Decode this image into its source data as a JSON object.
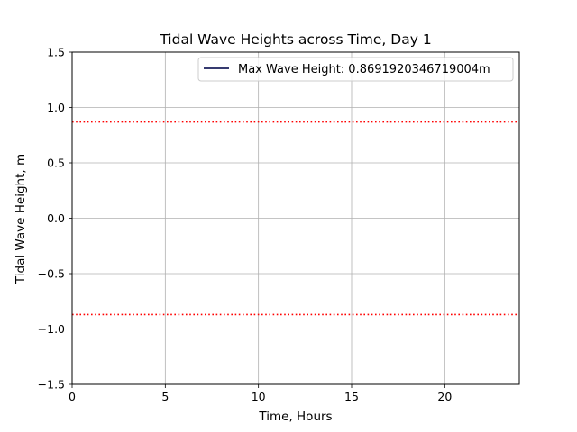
{
  "chart_data": {
    "type": "line",
    "title": "Tidal Wave Heights across Time, Day 1",
    "xlabel": "Time, Hours",
    "ylabel": "Tidal Wave Height, m",
    "xlim": [
      0,
      24
    ],
    "ylim": [
      -1.5,
      1.5
    ],
    "xticks": [
      0,
      5,
      10,
      15,
      20
    ],
    "yticks": [
      -1.5,
      -1.0,
      -0.5,
      0.0,
      0.5,
      1.0,
      1.5
    ],
    "xtick_labels": [
      "0",
      "5",
      "10",
      "15",
      "20"
    ],
    "ytick_labels": [
      "−1.5",
      "−1.0",
      "−0.5",
      "0.0",
      "0.5",
      "1.0",
      "1.5"
    ],
    "grid": true,
    "series": [
      {
        "name": "Max Wave Height: 0.8691920346719004m",
        "color": "#1a1f5c",
        "x": [],
        "y": []
      }
    ],
    "reference_lines": [
      {
        "orientation": "horizontal",
        "y": 0.8691920346719004,
        "style": "dotted",
        "color": "#ff0000"
      },
      {
        "orientation": "horizontal",
        "y": -0.8691920346719004,
        "style": "dotted",
        "color": "#ff0000"
      }
    ],
    "legend": {
      "placement": "upper-right"
    }
  }
}
